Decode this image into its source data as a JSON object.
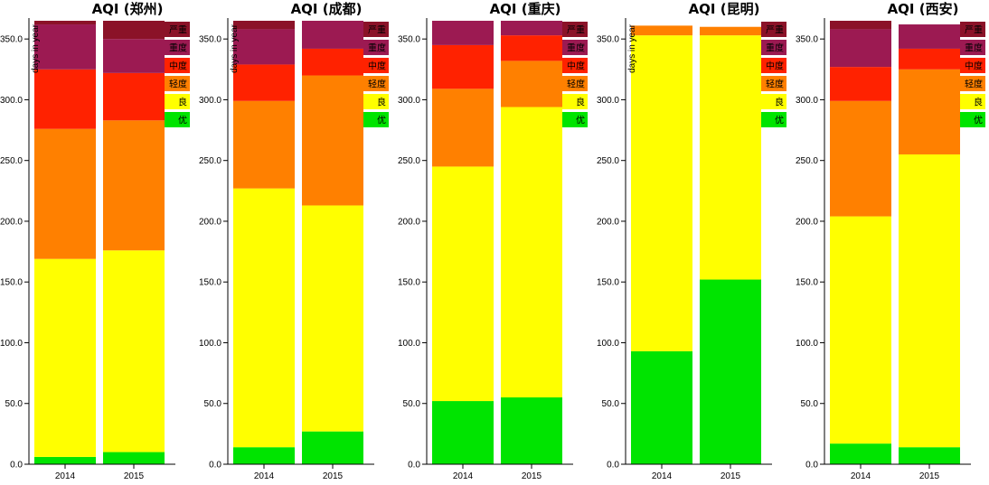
{
  "chart_data": [
    {
      "type": "bar",
      "stacked": true,
      "title": "AQI (郑州)",
      "ylabel": "days in year",
      "categories": [
        "2014",
        "2015"
      ],
      "ylim": [
        0,
        365
      ],
      "yticks": [
        0,
        50,
        100,
        150,
        200,
        250,
        300,
        350
      ],
      "series": [
        {
          "name": "优",
          "values": [
            6,
            10
          ]
        },
        {
          "name": "良",
          "values": [
            163,
            166
          ]
        },
        {
          "name": "轻度",
          "values": [
            107,
            107
          ]
        },
        {
          "name": "中度",
          "values": [
            49,
            39
          ]
        },
        {
          "name": "重度",
          "values": [
            37,
            28
          ]
        },
        {
          "name": "严重",
          "values": [
            3,
            15
          ]
        }
      ]
    },
    {
      "type": "bar",
      "stacked": true,
      "title": "AQI (成都)",
      "ylabel": "days in year",
      "categories": [
        "2014",
        "2015"
      ],
      "ylim": [
        0,
        365
      ],
      "yticks": [
        0,
        50,
        100,
        150,
        200,
        250,
        300,
        350
      ],
      "series": [
        {
          "name": "优",
          "values": [
            14,
            27
          ]
        },
        {
          "name": "良",
          "values": [
            213,
            186
          ]
        },
        {
          "name": "轻度",
          "values": [
            72,
            107
          ]
        },
        {
          "name": "中度",
          "values": [
            30,
            22
          ]
        },
        {
          "name": "重度",
          "values": [
            29,
            23
          ]
        },
        {
          "name": "严重",
          "values": [
            7,
            0
          ]
        }
      ]
    },
    {
      "type": "bar",
      "stacked": true,
      "title": "AQI (重庆)",
      "ylabel": "",
      "categories": [
        "2014",
        "2015"
      ],
      "ylim": [
        0,
        365
      ],
      "yticks": [
        0,
        50,
        100,
        150,
        200,
        250,
        300,
        350
      ],
      "series": [
        {
          "name": "优",
          "values": [
            52,
            55
          ]
        },
        {
          "name": "良",
          "values": [
            193,
            239
          ]
        },
        {
          "name": "轻度",
          "values": [
            64,
            38
          ]
        },
        {
          "name": "中度",
          "values": [
            36,
            21
          ]
        },
        {
          "name": "重度",
          "values": [
            20,
            12
          ]
        },
        {
          "name": "严重",
          "values": [
            0,
            0
          ]
        }
      ]
    },
    {
      "type": "bar",
      "stacked": true,
      "title": "AQI (昆明)",
      "ylabel": "days in year",
      "categories": [
        "2014",
        "2015"
      ],
      "ylim": [
        0,
        365
      ],
      "yticks": [
        0,
        50,
        100,
        150,
        200,
        250,
        300,
        350
      ],
      "series": [
        {
          "name": "优",
          "values": [
            93,
            152
          ]
        },
        {
          "name": "良",
          "values": [
            260,
            201
          ]
        },
        {
          "name": "轻度",
          "values": [
            8,
            7
          ]
        },
        {
          "name": "中度",
          "values": [
            0,
            0
          ]
        },
        {
          "name": "重度",
          "values": [
            0,
            0
          ]
        },
        {
          "name": "严重",
          "values": [
            0,
            0
          ]
        }
      ]
    },
    {
      "type": "bar",
      "stacked": true,
      "title": "AQI (西安)",
      "ylabel": "",
      "categories": [
        "2014",
        "2015"
      ],
      "ylim": [
        0,
        365
      ],
      "yticks": [
        0,
        50,
        100,
        150,
        200,
        250,
        300,
        350
      ],
      "series": [
        {
          "name": "优",
          "values": [
            17,
            14
          ]
        },
        {
          "name": "良",
          "values": [
            187,
            241
          ]
        },
        {
          "name": "轻度",
          "values": [
            95,
            70
          ]
        },
        {
          "name": "中度",
          "values": [
            28,
            17
          ]
        },
        {
          "name": "重度",
          "values": [
            31,
            20
          ]
        },
        {
          "name": "严重",
          "values": [
            7,
            0
          ]
        }
      ]
    }
  ],
  "legend": {
    "placement": "right",
    "items": [
      {
        "label": "严重",
        "color": "#8b1228"
      },
      {
        "label": "重度",
        "color": "#9c1a52"
      },
      {
        "label": "中度",
        "color": "#ff2200"
      },
      {
        "label": "轻度",
        "color": "#ff8000"
      },
      {
        "label": "良",
        "color": "#ffff00"
      },
      {
        "label": "优",
        "color": "#00e400"
      }
    ]
  },
  "colors": {
    "优": "#00e400",
    "良": "#ffff00",
    "轻度": "#ff8000",
    "中度": "#ff2200",
    "重度": "#9c1a52",
    "严重": "#8b1228"
  }
}
